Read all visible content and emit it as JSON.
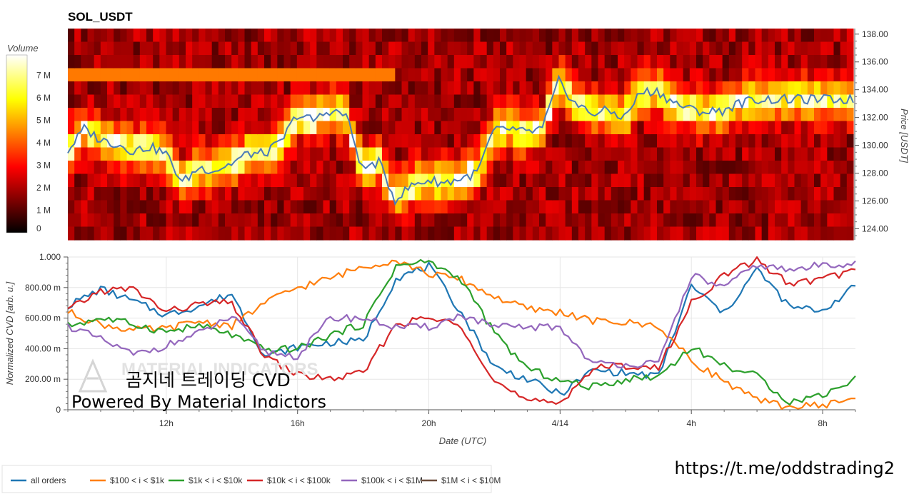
{
  "chart_data": [
    {
      "type": "heatmap",
      "title": "SOL_USDT",
      "ylabel": "Price [USDT]",
      "ylim": [
        123.2,
        138.4
      ],
      "yticks": [
        "138.00",
        "136.00",
        "134.00",
        "132.00",
        "130.00",
        "128.00",
        "126.00",
        "124.00"
      ],
      "colorbar": {
        "title": "Volume",
        "ticks": [
          "7 M",
          "6 M",
          "5 M",
          "4 M",
          "3 M",
          "2 M",
          "1 M",
          "0"
        ],
        "range": [
          0,
          7900000
        ],
        "colormap": "hot"
      },
      "price_series": {
        "name": "price",
        "color": "#4a7ab8",
        "x_hours": [
          0,
          0.5,
          1,
          1.5,
          2,
          2.5,
          3,
          3.5,
          4,
          4.5,
          5,
          5.5,
          6,
          6.5,
          7,
          7.5,
          8,
          8.5,
          9,
          9.5,
          10,
          10.5,
          11,
          11.5,
          12,
          12.5,
          13,
          13.5,
          14,
          14.5,
          15,
          15.5,
          16,
          16.5,
          17,
          17.5,
          18,
          18.5,
          19,
          19.5,
          20,
          20.5,
          21,
          21.5,
          22,
          22.5,
          23,
          23.5,
          24
        ],
        "values": [
          129.6,
          131.2,
          130.4,
          130.1,
          129.6,
          129.9,
          129.4,
          127.3,
          128.4,
          128.2,
          128.7,
          129.4,
          129.4,
          130.2,
          132.2,
          131.8,
          132.5,
          132.2,
          128.3,
          128.8,
          126.1,
          127.1,
          127.5,
          127.3,
          127.6,
          128.0,
          131.0,
          131.2,
          130.9,
          131.2,
          134.6,
          133.0,
          132.3,
          132.5,
          132.0,
          133.8,
          133.9,
          133.1,
          132.6,
          132.4,
          132.5,
          133.0,
          133.3,
          133.3,
          133.3,
          133.3,
          133.3,
          133.3,
          133.3
        ]
      }
    },
    {
      "type": "line",
      "xlabel": "Date (UTC)",
      "ylabel": "Normalized CVD [arb. u.]",
      "ylim": [
        0,
        1
      ],
      "yticks": [
        "1.000",
        "800.00 m",
        "600.00 m",
        "400.00 m",
        "200.00 m",
        "0"
      ],
      "xticks": [
        "12h",
        "16h",
        "20h",
        "4/14",
        "4h",
        "8h"
      ],
      "x_hours": [
        0,
        1,
        2,
        3,
        4,
        5,
        6,
        7,
        8,
        9,
        10,
        11,
        12,
        13,
        14,
        15,
        16,
        17,
        18,
        19,
        20,
        21,
        22,
        23,
        24
      ],
      "series": [
        {
          "name": "all orders",
          "color": "#1f77b4",
          "values": [
            0.68,
            0.79,
            0.71,
            0.62,
            0.68,
            0.76,
            0.35,
            0.41,
            0.44,
            0.45,
            0.86,
            0.94,
            0.63,
            0.28,
            0.2,
            0.1,
            0.26,
            0.24,
            0.22,
            0.81,
            0.63,
            0.92,
            0.67,
            0.65,
            0.81
          ]
        },
        {
          "name": "$100 < i < $1k",
          "color": "#ff7f0e",
          "values": [
            0.64,
            0.56,
            0.52,
            0.53,
            0.58,
            0.55,
            0.7,
            0.8,
            0.86,
            0.94,
            0.98,
            0.89,
            0.85,
            0.74,
            0.66,
            0.64,
            0.58,
            0.57,
            0.55,
            0.32,
            0.19,
            0.06,
            0.02,
            0.03,
            0.08
          ]
        },
        {
          "name": "$1k < i < $10k",
          "color": "#2ca02c",
          "values": [
            0.55,
            0.6,
            0.56,
            0.51,
            0.55,
            0.49,
            0.39,
            0.4,
            0.49,
            0.56,
            0.94,
            0.97,
            0.85,
            0.5,
            0.27,
            0.19,
            0.15,
            0.2,
            0.22,
            0.41,
            0.29,
            0.22,
            0.05,
            0.1,
            0.2
          ]
        },
        {
          "name": "$10k < i < $100k",
          "color": "#d62728",
          "values": [
            0.65,
            0.78,
            0.79,
            0.64,
            0.69,
            0.7,
            0.35,
            0.23,
            0.2,
            0.24,
            0.56,
            0.6,
            0.55,
            0.19,
            0.05,
            0.05,
            0.27,
            0.29,
            0.27,
            0.7,
            0.88,
            0.98,
            0.82,
            0.86,
            0.91
          ]
        },
        {
          "name": "$100k < i < $1M",
          "color": "#9467bd",
          "values": [
            0.55,
            0.46,
            0.36,
            0.42,
            0.5,
            0.61,
            0.38,
            0.35,
            0.6,
            0.6,
            0.54,
            0.54,
            0.62,
            0.54,
            0.54,
            0.54,
            0.3,
            0.3,
            0.3,
            0.88,
            0.8,
            0.95,
            0.91,
            0.95,
            0.96
          ]
        },
        {
          "name": "$1M < i < $10M",
          "color": "#6b4c3b",
          "values": []
        }
      ]
    }
  ],
  "watermark": {
    "line1": "곰지네 트레이딩 CVD",
    "line2": "Powered By Material Indictors",
    "logo_text": "MATERIAL INDICATORS"
  },
  "url_text": "https://t.me/oddstrading2"
}
